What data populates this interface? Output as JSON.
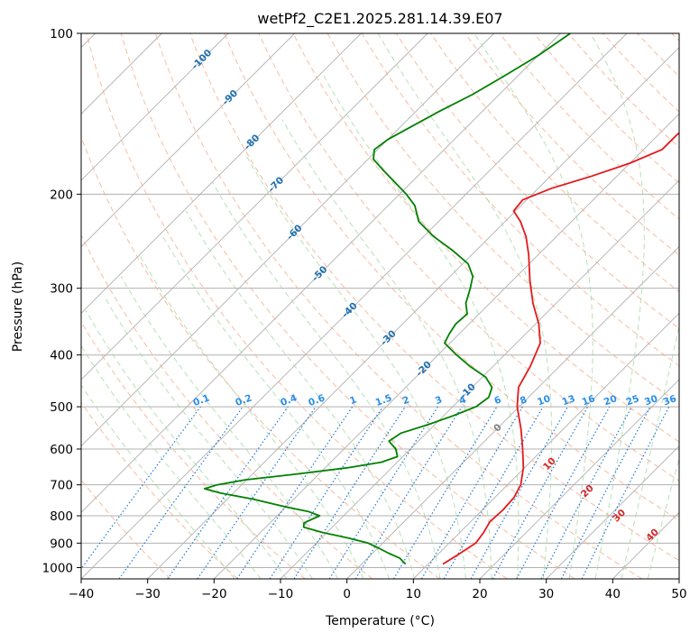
{
  "chart_data": {
    "type": "line",
    "title": "wetPf2_C2E1.2025.281.14.39.E07",
    "xlabel": "Temperature (°C)",
    "ylabel": "Pressure (hPa)",
    "xlim": [
      -40,
      50
    ],
    "ylim": [
      1050,
      100
    ],
    "y_scale": "log",
    "skew": true,
    "grid": true,
    "x_ticks": [
      "−40",
      "−30",
      "−20",
      "−10",
      "0",
      "10",
      "20",
      "30",
      "40",
      "50"
    ],
    "x_tick_values": [
      -40,
      -30,
      -20,
      -10,
      0,
      10,
      20,
      30,
      40,
      50
    ],
    "y_ticks": [
      "100",
      "200",
      "300",
      "400",
      "500",
      "600",
      "700",
      "800",
      "900",
      "1000"
    ],
    "y_tick_values": [
      100,
      200,
      300,
      400,
      500,
      600,
      700,
      800,
      900,
      1000
    ],
    "colors": {
      "temperature": "#e31a1c",
      "dewpoint": "#008000",
      "isotherm": "#b0b0b0",
      "dry_adiabat": "#f4a582",
      "moist_adiabat": "#a6d8a6",
      "mixing_ratio": "#1f78d4",
      "isotherm_label": "#1f6fb0",
      "moist_label": "#d62728",
      "mixing_label": "#2a8ee8"
    },
    "series": [
      {
        "key": "temperature",
        "points": [
          [
            985,
            12.2
          ],
          [
            950,
            13.0
          ],
          [
            900,
            14.0
          ],
          [
            860,
            13.6
          ],
          [
            820,
            12.9
          ],
          [
            780,
            13.1
          ],
          [
            740,
            12.9
          ],
          [
            700,
            12.0
          ],
          [
            650,
            9.8
          ],
          [
            600,
            6.9
          ],
          [
            550,
            3.6
          ],
          [
            500,
            -0.3
          ],
          [
            460,
            -3.0
          ],
          [
            420,
            -4.4
          ],
          [
            380,
            -6.4
          ],
          [
            350,
            -9.5
          ],
          [
            320,
            -13.5
          ],
          [
            290,
            -17.4
          ],
          [
            260,
            -21.4
          ],
          [
            240,
            -24.6
          ],
          [
            225,
            -27.7
          ],
          [
            215,
            -30.3
          ],
          [
            205,
            -30.6
          ],
          [
            195,
            -28.0
          ],
          [
            185,
            -23.8
          ],
          [
            175,
            -20.0
          ],
          [
            165,
            -17.2
          ],
          [
            155,
            -17.2
          ],
          [
            145,
            -16.8
          ],
          [
            135,
            -17.4
          ],
          [
            125,
            -17.0
          ],
          [
            115,
            -15.6
          ],
          [
            105,
            -15.6
          ],
          [
            100,
            -15.6
          ]
        ]
      },
      {
        "key": "dewpoint",
        "points": [
          [
            985,
            6.6
          ],
          [
            960,
            4.8
          ],
          [
            940,
            2.4
          ],
          [
            920,
            0.2
          ],
          [
            900,
            -2.2
          ],
          [
            880,
            -6.0
          ],
          [
            860,
            -10.6
          ],
          [
            840,
            -14.3
          ],
          [
            825,
            -14.9
          ],
          [
            800,
            -13.6
          ],
          [
            785,
            -16.0
          ],
          [
            770,
            -20.0
          ],
          [
            745,
            -26.0
          ],
          [
            725,
            -32.0
          ],
          [
            712,
            -35.0
          ],
          [
            700,
            -33.7
          ],
          [
            685,
            -30.2
          ],
          [
            670,
            -24.0
          ],
          [
            650,
            -16.5
          ],
          [
            635,
            -12.4
          ],
          [
            620,
            -10.8
          ],
          [
            600,
            -12.2
          ],
          [
            580,
            -14.4
          ],
          [
            560,
            -13.8
          ],
          [
            540,
            -11.0
          ],
          [
            520,
            -8.6
          ],
          [
            500,
            -6.5
          ],
          [
            480,
            -6.0
          ],
          [
            460,
            -7.0
          ],
          [
            440,
            -9.5
          ],
          [
            420,
            -13.5
          ],
          [
            400,
            -17.2
          ],
          [
            380,
            -20.8
          ],
          [
            365,
            -21.5
          ],
          [
            350,
            -22.0
          ],
          [
            335,
            -21.8
          ],
          [
            320,
            -23.6
          ],
          [
            300,
            -25.2
          ],
          [
            285,
            -26.6
          ],
          [
            270,
            -29.2
          ],
          [
            255,
            -33.5
          ],
          [
            240,
            -38.5
          ],
          [
            225,
            -43.0
          ],
          [
            210,
            -46.0
          ],
          [
            200,
            -49.0
          ],
          [
            190,
            -52.5
          ],
          [
            180,
            -56.2
          ],
          [
            172,
            -59.2
          ],
          [
            165,
            -60.5
          ],
          [
            158,
            -60.0
          ],
          [
            150,
            -58.5
          ],
          [
            140,
            -56.5
          ],
          [
            130,
            -54.0
          ],
          [
            120,
            -52.0
          ],
          [
            110,
            -50.0
          ],
          [
            100,
            -48.5
          ]
        ]
      }
    ],
    "isotherm_labels": [
      "-100",
      "-90",
      "-80",
      "-70",
      "-60",
      "-50",
      "-40",
      "-30",
      "-20",
      "-10"
    ],
    "isotherm_label_values": [
      -100,
      -90,
      -80,
      -70,
      -60,
      -50,
      -40,
      -30,
      -20,
      -10
    ],
    "isotherm_label_pressures": [
      112,
      132,
      160,
      192,
      236,
      282,
      330,
      372,
      425,
      468
    ],
    "zero_isotherm_label": "0",
    "zero_isotherm_label_pressure": 548,
    "moist_adiabat_labels": [
      "10",
      "20",
      "30",
      "40"
    ],
    "moist_adiabat_label_points": [
      [
        30.5,
        640
      ],
      [
        36.2,
        720
      ],
      [
        41.0,
        800
      ],
      [
        46.0,
        870
      ]
    ],
    "mixing_ratio_labels": [
      "0.1",
      "0.2",
      "0.4",
      "0.6",
      "1",
      "1.5",
      "2",
      "3",
      "4",
      "6",
      "8",
      "10",
      "13",
      "16",
      "20",
      "25",
      "30",
      "36"
    ],
    "mixing_ratio_values": [
      0.1,
      0.2,
      0.4,
      0.6,
      1,
      1.5,
      2,
      3,
      4,
      6,
      8,
      10,
      13,
      16,
      20,
      25,
      30,
      36
    ],
    "mixing_ratio_top_pressure": 500
  }
}
